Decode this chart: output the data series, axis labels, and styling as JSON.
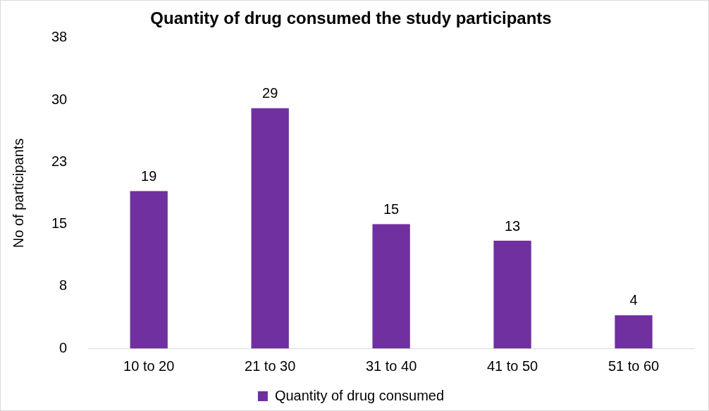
{
  "chart_data": {
    "type": "bar",
    "title": "Quantity of drug consumed the study participants",
    "ylabel": "No of participants",
    "categories": [
      "10 to 20",
      "21 to 30",
      "31 to 40",
      "41 to 50",
      "51 to 60"
    ],
    "series": [
      {
        "name": "Quantity of drug consumed",
        "color": "#7030a0",
        "values": [
          19,
          29,
          15,
          13,
          4
        ]
      }
    ],
    "ylim": [
      0,
      37.5
    ],
    "yticks": [
      0,
      {
        "value": 7.5,
        "label": "8"
      },
      15,
      {
        "value": 22.5,
        "label": "23"
      },
      30,
      {
        "value": 37.5,
        "label": "38"
      }
    ],
    "data_labels": true,
    "legend": "bottom",
    "grid": false
  }
}
